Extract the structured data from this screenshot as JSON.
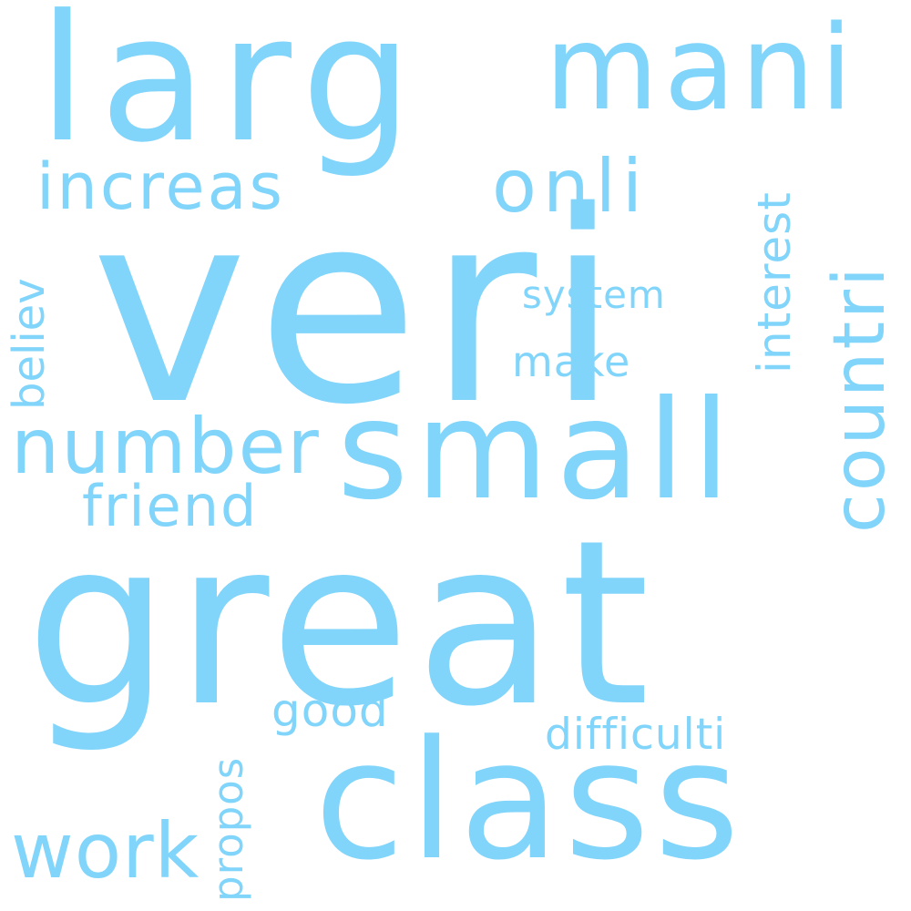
{
  "word_color": "#81d4fa",
  "background_color": "#ffffff",
  "words": [
    "larg",
    "mani",
    "increas",
    "onli",
    "veri",
    "countri",
    "interest",
    "system",
    "make",
    "believ",
    "number",
    "small",
    "friend",
    "great",
    "good",
    "difficulti",
    "class",
    "work",
    "propos"
  ]
}
